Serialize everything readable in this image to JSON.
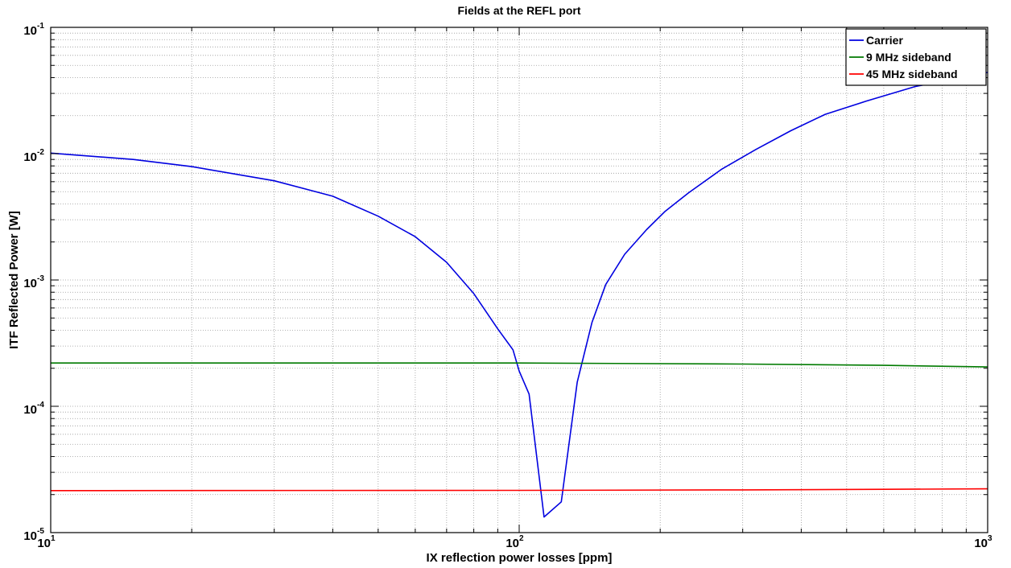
{
  "chart_data": {
    "type": "line",
    "title": "Fields at the REFL port",
    "xlabel": "IX reflection power losses [ppm]",
    "ylabel": "ITF Reflected Power [W]",
    "xscale": "log",
    "yscale": "log",
    "xlim": [
      10,
      1000
    ],
    "ylim": [
      1e-05,
      0.1
    ],
    "grid": true,
    "legend_position": "top-right",
    "x_ticks": [
      {
        "base": "10",
        "exp": "1",
        "value": 10
      },
      {
        "base": "10",
        "exp": "2",
        "value": 100
      },
      {
        "base": "10",
        "exp": "3",
        "value": 1000
      }
    ],
    "y_ticks": [
      {
        "base": "10",
        "exp": "-5",
        "value": 1e-05
      },
      {
        "base": "10",
        "exp": "-4",
        "value": 0.0001
      },
      {
        "base": "10",
        "exp": "-3",
        "value": 0.001
      },
      {
        "base": "10",
        "exp": "-2",
        "value": 0.01
      },
      {
        "base": "10",
        "exp": "-1",
        "value": 0.1
      }
    ],
    "series": [
      {
        "name": "Carrier",
        "color": "#0000e0",
        "x": [
          10,
          15,
          20,
          30,
          40,
          50,
          60,
          70,
          80,
          90,
          97,
          100,
          105,
          113,
          123,
          133,
          143,
          153,
          168,
          187,
          205,
          230,
          270,
          320,
          380,
          450,
          550,
          700,
          850,
          1000
        ],
        "y": [
          0.0101,
          0.009,
          0.0079,
          0.0061,
          0.0046,
          0.0032,
          0.0022,
          0.00138,
          0.00078,
          0.00041,
          0.00028,
          0.00019,
          0.000125,
          1.33e-05,
          1.75e-05,
          0.000155,
          0.00046,
          0.00092,
          0.0016,
          0.0025,
          0.0035,
          0.0049,
          0.0075,
          0.0108,
          0.0152,
          0.0205,
          0.026,
          0.034,
          0.039,
          0.044
        ]
      },
      {
        "name": "9 MHz sideband",
        "color": "#007a00",
        "x": [
          10,
          100,
          300,
          600,
          1000
        ],
        "y": [
          0.00022,
          0.00022,
          0.000216,
          0.000211,
          0.000205
        ]
      },
      {
        "name": "45 MHz sideband",
        "color": "#ff0000",
        "x": [
          10,
          100,
          300,
          600,
          1000
        ],
        "y": [
          2.15e-05,
          2.16e-05,
          2.18e-05,
          2.2e-05,
          2.22e-05
        ]
      }
    ]
  }
}
